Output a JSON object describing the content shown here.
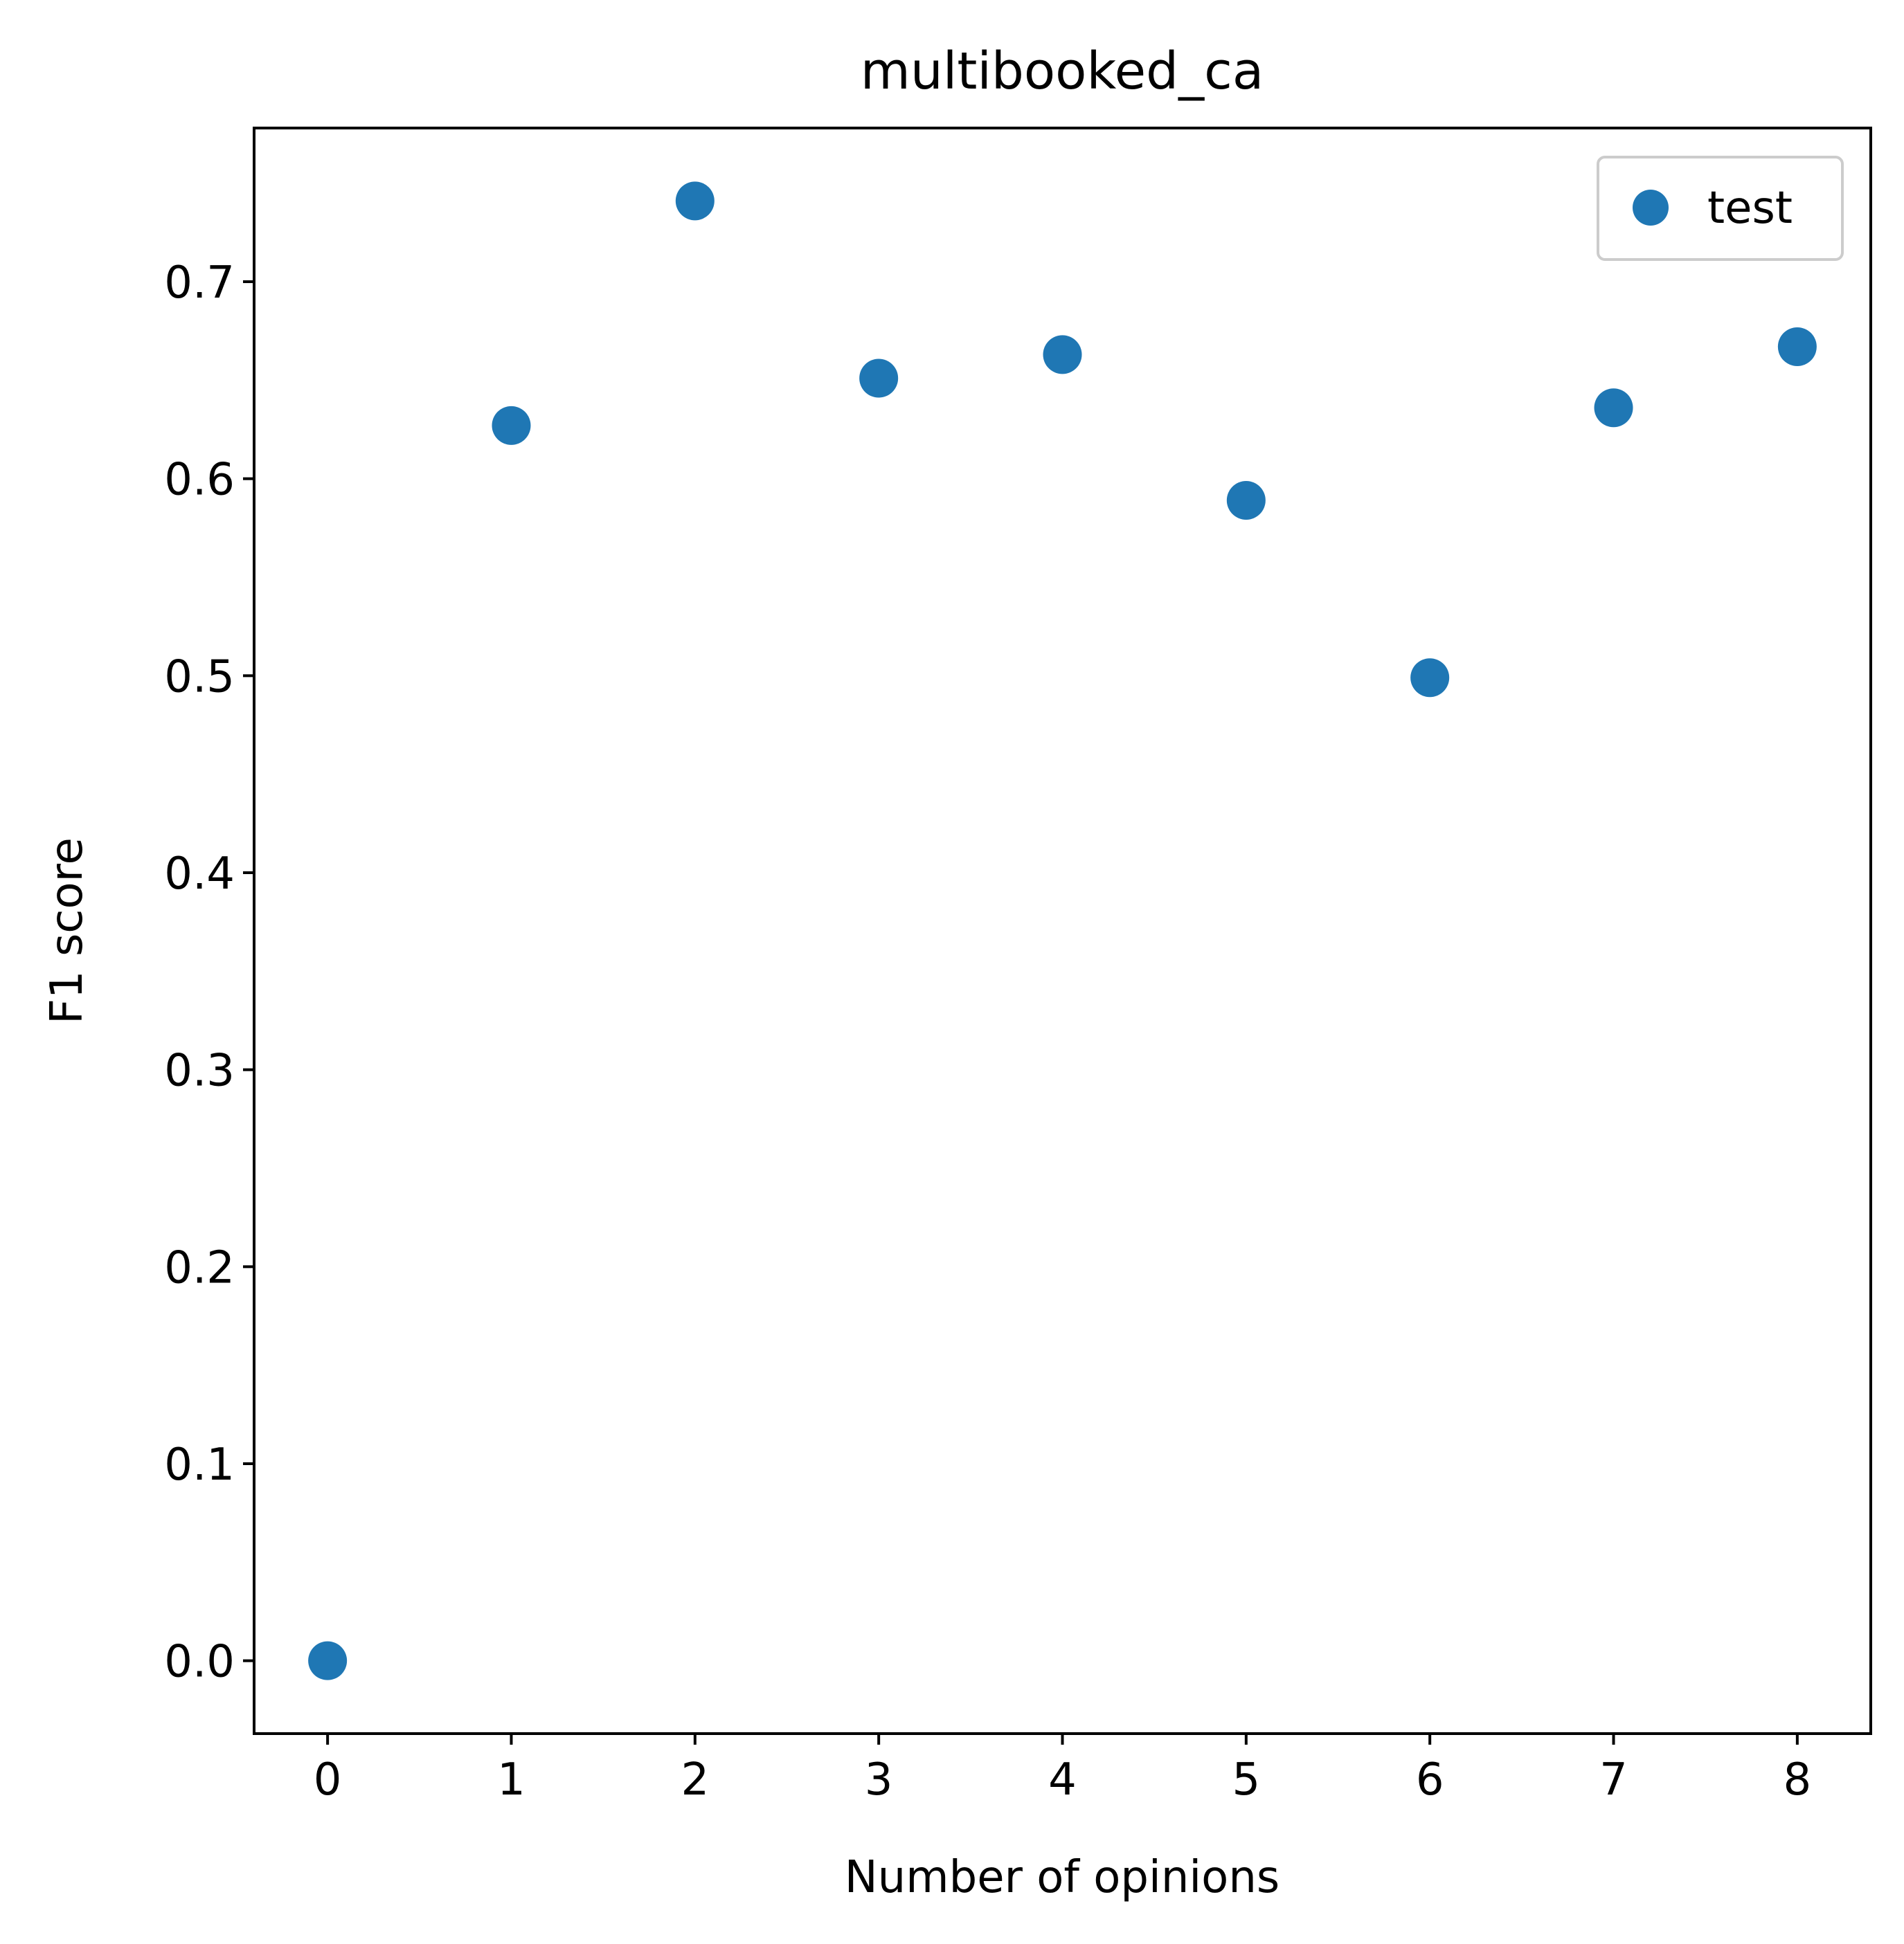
{
  "chart_data": {
    "type": "scatter",
    "title": "multibooked_ca",
    "xlabel": "Number of opinions",
    "ylabel": "F1 score",
    "xlim": [
      -0.4,
      8.4
    ],
    "ylim": [
      -0.037,
      0.778
    ],
    "xticks": [
      0,
      1,
      2,
      3,
      4,
      5,
      6,
      7,
      8
    ],
    "xtick_labels": [
      "0",
      "1",
      "2",
      "3",
      "4",
      "5",
      "6",
      "7",
      "8"
    ],
    "yticks": [
      0.0,
      0.1,
      0.2,
      0.3,
      0.4,
      0.5,
      0.6,
      0.7
    ],
    "ytick_labels": [
      "0.0",
      "0.1",
      "0.2",
      "0.3",
      "0.4",
      "0.5",
      "0.6",
      "0.7"
    ],
    "grid": false,
    "legend_position": "top-right",
    "series": [
      {
        "name": "test",
        "color": "#1f77b4",
        "x": [
          0,
          1,
          2,
          3,
          4,
          5,
          6,
          7,
          8
        ],
        "y": [
          0.0,
          0.627,
          0.741,
          0.651,
          0.663,
          0.589,
          0.499,
          0.636,
          0.667
        ]
      }
    ]
  }
}
